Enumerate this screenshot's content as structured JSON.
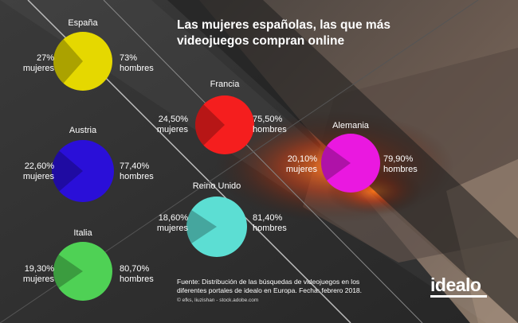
{
  "title_lines": [
    "Las mujeres españolas, las que más",
    "videojuegos compran online"
  ],
  "source_lines": [
    "Fuente: Distribución de las búsquedas de videojuegos en los",
    "diferentes portales de idealo en Europa. Fecha: febrero 2018."
  ],
  "credit": "© efks, liuzishan - stock.adobe.com",
  "logo": "idealo",
  "chart_data": {
    "type": "pie",
    "series_labels": [
      "mujeres",
      "hombres"
    ],
    "pies": [
      {
        "country": "España",
        "mujeres": 27,
        "hombres": 73,
        "mujeres_label": "27%",
        "hombres_label": "73%",
        "color": "#e5d800"
      },
      {
        "country": "Austria",
        "mujeres": 22.6,
        "hombres": 77.4,
        "mujeres_label": "22,60%",
        "hombres_label": "77,40%",
        "color": "#2a0fd8"
      },
      {
        "country": "Italia",
        "mujeres": 19.3,
        "hombres": 80.7,
        "mujeres_label": "19,30%",
        "hombres_label": "80,70%",
        "color": "#4fd155"
      },
      {
        "country": "Francia",
        "mujeres": 24.5,
        "hombres": 75.5,
        "mujeres_label": "24,50%",
        "hombres_label": "75,50%",
        "color": "#f51e1e"
      },
      {
        "country": "Reino Unido",
        "mujeres": 18.6,
        "hombres": 81.4,
        "mujeres_label": "18,60%",
        "hombres_label": "81,40%",
        "color": "#5cded3"
      },
      {
        "country": "Alemania",
        "mujeres": 20.1,
        "hombres": 79.9,
        "mujeres_label": "20,10%",
        "hombres_label": "79,90%",
        "color": "#ea18e0"
      }
    ]
  }
}
